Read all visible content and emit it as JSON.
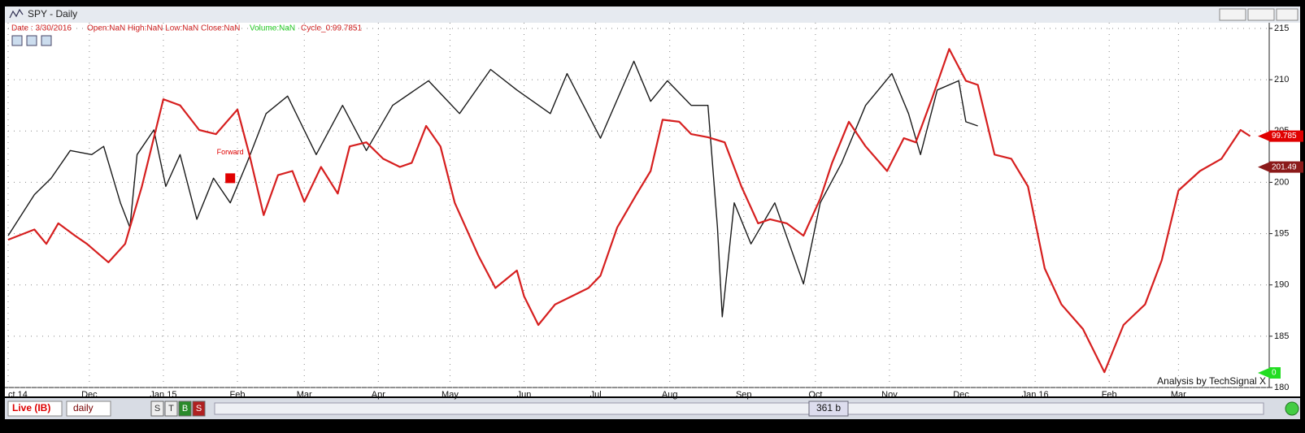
{
  "window": {
    "title": "SPY  -  Daily"
  },
  "info": {
    "date": "Date : 3/30/2016",
    "ohlc": "Open:NaN High:NaN  Low:NaN Close:NaN",
    "volume": "Volume:NaN",
    "cycle": "Cycle_0:99.7851"
  },
  "chart_data": {
    "type": "line",
    "xlim": [
      27,
      555
    ],
    "ylim": [
      180,
      215
    ],
    "yticks": [
      180,
      185,
      190,
      195,
      200,
      205,
      210,
      215
    ],
    "xticks": [
      {
        "value": 27,
        "label": "ct 14"
      },
      {
        "value": 61,
        "label": "Dec"
      },
      {
        "value": 92,
        "label": "Jan 15"
      },
      {
        "value": 123,
        "label": "Feb"
      },
      {
        "value": 151,
        "label": "Mar"
      },
      {
        "value": 182,
        "label": "Apr"
      },
      {
        "value": 212,
        "label": "May"
      },
      {
        "value": 243,
        "label": "Jun"
      },
      {
        "value": 273,
        "label": "Jul"
      },
      {
        "value": 304,
        "label": "Aug"
      },
      {
        "value": 335,
        "label": "Sep"
      },
      {
        "value": 365,
        "label": "Oct"
      },
      {
        "value": 396,
        "label": "Nov"
      },
      {
        "value": 426,
        "label": "Dec"
      },
      {
        "value": 457,
        "label": "Jan 16"
      },
      {
        "value": 488,
        "label": "Feb"
      },
      {
        "value": 517,
        "label": "Mar"
      }
    ],
    "grid": true,
    "series": [
      {
        "name": "SPY",
        "color": "#1a1a1a",
        "x": [
          27,
          38,
          45,
          53,
          62,
          67,
          74,
          78,
          81,
          88,
          93,
          99,
          106,
          113,
          120,
          127,
          135,
          144,
          156,
          167,
          177,
          188,
          203,
          216,
          229,
          240,
          254,
          261,
          275,
          289,
          296,
          303,
          313,
          320,
          324,
          326,
          331,
          338,
          348,
          360,
          367,
          376,
          386,
          397,
          404,
          409,
          416,
          425,
          428,
          433
        ],
        "values": [
          194.8,
          198.8,
          200.4,
          203.1,
          202.7,
          203.5,
          198.0,
          195.6,
          202.7,
          205.1,
          199.6,
          202.7,
          196.4,
          200.4,
          198.0,
          201.9,
          206.7,
          208.4,
          202.7,
          207.5,
          203.1,
          207.5,
          209.9,
          206.7,
          211.0,
          209.0,
          206.7,
          210.6,
          204.3,
          211.8,
          207.9,
          209.9,
          207.5,
          207.5,
          195.6,
          186.9,
          198.0,
          194.0,
          198.0,
          190.1,
          198.0,
          201.9,
          207.5,
          210.6,
          206.7,
          202.7,
          209.0,
          209.9,
          205.9,
          205.5
        ]
      },
      {
        "name": "Cycle_0",
        "color": "#d61f1f",
        "x": [
          27,
          38,
          43,
          48,
          55,
          60,
          69,
          76,
          83,
          92,
          99,
          107,
          114,
          123,
          128,
          134,
          140,
          146,
          151,
          158,
          165,
          170,
          177,
          184,
          191,
          196,
          202,
          208,
          214,
          224,
          231,
          240,
          243,
          249,
          256,
          263,
          270,
          275,
          282,
          290,
          296,
          301,
          308,
          313,
          320,
          327,
          334,
          341,
          346,
          353,
          360,
          367,
          372,
          379,
          386,
          395,
          402,
          407,
          414,
          421,
          428,
          433,
          440,
          447,
          454,
          461,
          468,
          477,
          486,
          494,
          503,
          510,
          517,
          526,
          535,
          543,
          547
        ],
        "values": [
          194.4,
          195.4,
          194.0,
          196.0,
          194.8,
          194.0,
          192.2,
          194.0,
          199.6,
          208.1,
          207.5,
          205.1,
          204.7,
          207.1,
          202.7,
          196.8,
          200.7,
          201.1,
          198.1,
          201.5,
          198.9,
          203.5,
          203.9,
          202.3,
          201.5,
          201.9,
          205.5,
          203.5,
          198.0,
          192.8,
          189.7,
          191.4,
          188.9,
          186.1,
          188.1,
          188.9,
          189.7,
          190.9,
          195.6,
          198.8,
          201.1,
          206.1,
          205.9,
          204.7,
          204.4,
          203.9,
          199.6,
          196.0,
          196.4,
          196.0,
          194.8,
          198.4,
          201.9,
          205.9,
          203.5,
          201.1,
          204.3,
          203.9,
          208.3,
          213.0,
          209.9,
          209.5,
          202.7,
          202.3,
          199.6,
          191.6,
          188.1,
          185.7,
          181.5,
          186.1,
          188.1,
          192.4,
          199.2,
          201.1,
          202.3,
          205.1,
          204.5
        ]
      }
    ],
    "cycle_marker": {
      "label": "99.785",
      "color": "#e00000"
    },
    "price_marker": {
      "value": 201.49,
      "label": "201.49",
      "color": "#8b1a1a"
    },
    "volume_marker": {
      "label": "0",
      "color": "#22dd22"
    },
    "annotation": {
      "text": "Forward",
      "x": 120,
      "y": 200.4,
      "color": "#e00000"
    },
    "credit": "Analysis by TechSignal X"
  },
  "toolbar": {
    "feed": "Live (IB)",
    "interval": "daily",
    "buttons": [
      "S",
      "T",
      "B",
      "S"
    ],
    "bars": "361 b"
  }
}
